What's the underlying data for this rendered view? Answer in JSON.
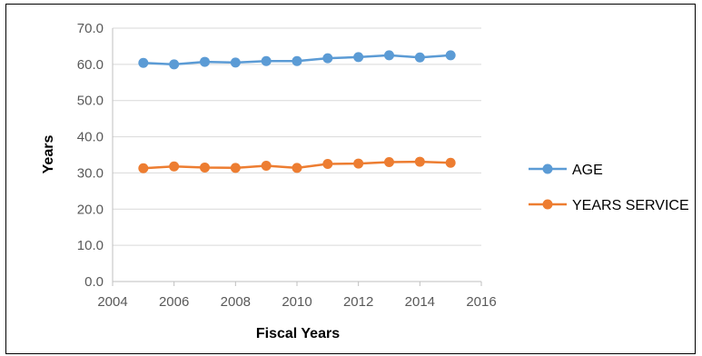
{
  "chart_data": {
    "type": "scatter",
    "title": "",
    "xlabel": "Fiscal Years",
    "ylabel": "Years",
    "xlim": [
      2004,
      2016
    ],
    "ylim": [
      0,
      70
    ],
    "xticks": [
      2004,
      2006,
      2008,
      2010,
      2012,
      2014,
      2016
    ],
    "xtick_labels": [
      "2004",
      "2006",
      "2008",
      "2010",
      "2012",
      "2014",
      "2016"
    ],
    "yticks": [
      0,
      10,
      20,
      30,
      40,
      50,
      60,
      70
    ],
    "ytick_labels": [
      "0.0",
      "10.0",
      "20.0",
      "30.0",
      "40.0",
      "50.0",
      "60.0",
      "70.0"
    ],
    "grid": "horizontal",
    "legend_position": "right",
    "lines_connected": true,
    "series": [
      {
        "name": "AGE",
        "color": "#5B9BD5",
        "x": [
          2005,
          2006,
          2007,
          2008,
          2009,
          2010,
          2011,
          2012,
          2013,
          2014,
          2015
        ],
        "y": [
          60.4,
          60.0,
          60.7,
          60.5,
          60.9,
          60.9,
          61.7,
          62.0,
          62.5,
          61.9,
          62.5
        ]
      },
      {
        "name": "YEARS SERVICE",
        "color": "#ED7D31",
        "x": [
          2005,
          2006,
          2007,
          2008,
          2009,
          2010,
          2011,
          2012,
          2013,
          2014,
          2015
        ],
        "y": [
          31.3,
          31.8,
          31.5,
          31.4,
          32.0,
          31.4,
          32.5,
          32.6,
          33.0,
          33.1,
          32.8
        ]
      }
    ]
  }
}
